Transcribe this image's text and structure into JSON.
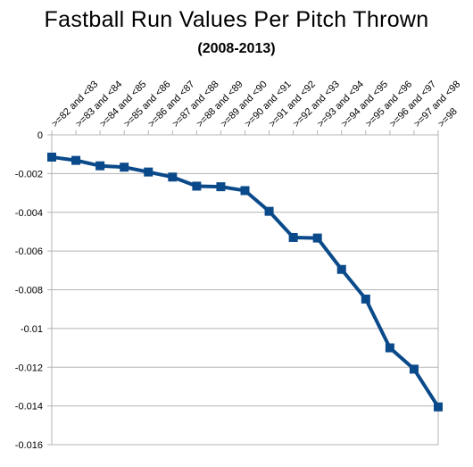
{
  "chart_data": {
    "type": "line",
    "title": "Fastball Run Values Per Pitch Thrown",
    "subtitle": "(2008-2013)",
    "xlabel": "",
    "ylabel": "",
    "categories": [
      ">=82 and <83",
      ">=83 and <84",
      ">=84 and <85",
      ">=85 and <86",
      ">=86 and <87",
      ">=87 and <88",
      ">=88 and <89",
      ">=89 and <90",
      ">=90 and <91",
      ">=91 and <92",
      ">=92 and <93",
      ">=93 and <94",
      ">=94 and <95",
      ">=95 and <96",
      ">=96 and <97",
      ">=97 and <98",
      ">=98"
    ],
    "series": [
      {
        "values": [
          -0.00115,
          -0.00132,
          -0.0016,
          -0.00167,
          -0.00192,
          -0.00218,
          -0.00265,
          -0.00268,
          -0.00288,
          -0.00395,
          -0.0053,
          -0.00533,
          -0.00695,
          -0.00848,
          -0.011,
          -0.0121,
          -0.01405
        ],
        "color": "#0a4a8a"
      }
    ],
    "ylim": [
      -0.016,
      0
    ],
    "yticks": [
      0,
      -0.002,
      -0.004,
      -0.006,
      -0.008,
      -0.01,
      -0.012,
      -0.014,
      -0.016
    ],
    "ytick_labels": [
      "0",
      "-0.002",
      "-0.004",
      "-0.006",
      "-0.008",
      "-0.01",
      "-0.012",
      "-0.014",
      "-0.016"
    ],
    "grid": true,
    "legend": "none"
  }
}
